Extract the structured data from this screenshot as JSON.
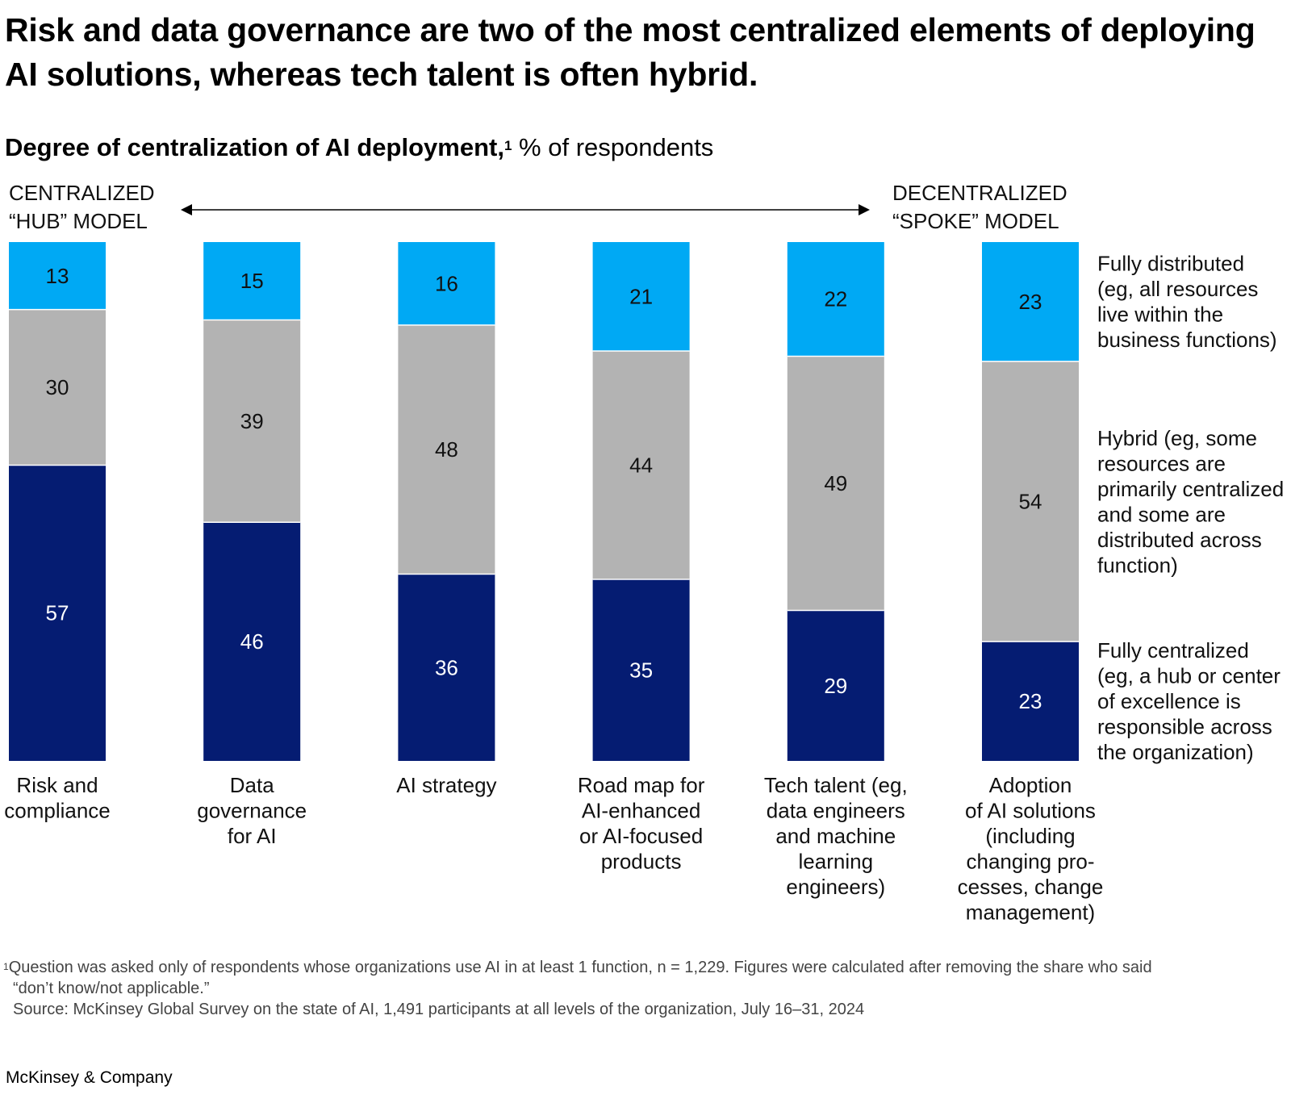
{
  "title": "Risk and data governance are two of the most centralized elements of deploying AI solutions, whereas tech talent is often hybrid.",
  "subtitle": {
    "bold": "Degree of centralization of AI deployment,",
    "footnote_marker": "1",
    "rest": "% of respondents"
  },
  "scale": {
    "left_label": "CENTRALIZED\n“HUB” MODEL",
    "right_label": "DECENTRALIZED\n“SPOKE” MODEL"
  },
  "chart_data": {
    "type": "bar",
    "stacked": true,
    "orientation": "vertical",
    "categories": [
      [
        "Risk and",
        "compliance"
      ],
      [
        "Data",
        "governance",
        "for AI"
      ],
      [
        "AI strategy"
      ],
      [
        "Road map for",
        "AI-enhanced",
        "or AI-focused",
        "products"
      ],
      [
        "Tech talent (eg,",
        "data engineers",
        "and machine",
        "learning",
        "engineers)"
      ],
      [
        "Adoption",
        "of AI solutions",
        "(including",
        "changing pro-",
        "cesses, change",
        "management)"
      ]
    ],
    "series": [
      {
        "name": "Fully centralized",
        "legend": [
          "Fully centralized",
          "(eg, a hub or center",
          "of excellence is",
          "responsible across",
          "the organization)"
        ],
        "color": "#051c72",
        "label_color": "#ffffff",
        "values": [
          57,
          46,
          36,
          35,
          29,
          23
        ]
      },
      {
        "name": "Hybrid",
        "legend": [
          "Hybrid (eg, some",
          "resources are",
          "primarily centralized",
          "and some are",
          "distributed across",
          "function)"
        ],
        "color": "#b3b3b3",
        "label_color": "#111111",
        "values": [
          30,
          39,
          48,
          44,
          49,
          54
        ]
      },
      {
        "name": "Fully distributed",
        "legend": [
          "Fully distributed",
          "(eg, all resources",
          "live within the",
          "business functions)"
        ],
        "color": "#00a9f4",
        "label_color": "#111111",
        "values": [
          13,
          15,
          16,
          21,
          22,
          23
        ]
      }
    ],
    "ylim": [
      0,
      100
    ],
    "unit": "% of respondents",
    "legend_position": "right"
  },
  "footnote": {
    "marker": "1",
    "line1": "Question was asked only of respondents whose organizations use AI in at least 1 function, n = 1,229. Figures were calculated after removing the share who said",
    "line2": "“don’t know/not applicable.”",
    "source": "Source: McKinsey Global Survey on the state of AI, 1,491 participants at all levels of the organization, July 16–31, 2024"
  },
  "brand": "McKinsey & Company"
}
